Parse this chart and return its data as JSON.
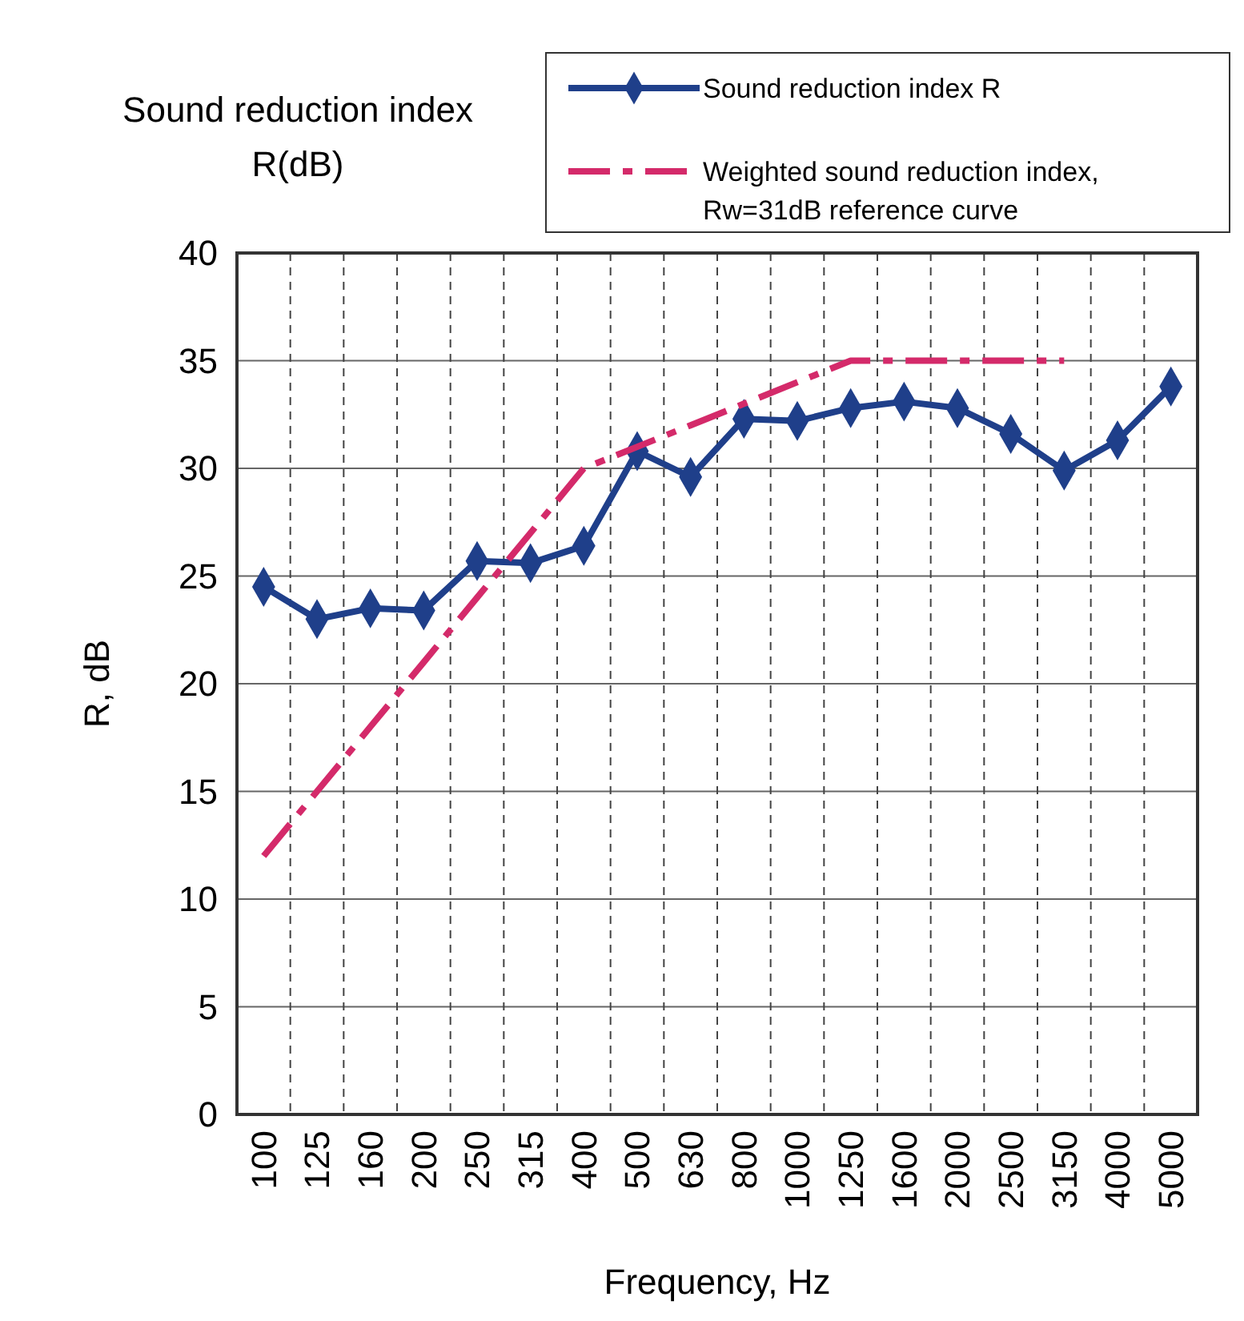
{
  "chart_data": {
    "type": "line",
    "title": "Sound reduction index R(dB)",
    "xlabel": "Frequency, Hz",
    "ylabel": "R, dB",
    "categories": [
      "100",
      "125",
      "160",
      "200",
      "250",
      "315",
      "400",
      "500",
      "630",
      "800",
      "1000",
      "1250",
      "1600",
      "2000",
      "2500",
      "3150",
      "4000",
      "5000"
    ],
    "series": [
      {
        "name": "Sound reduction index R",
        "color": "#1f3f8a",
        "marker": "diamond",
        "line_style": "solid",
        "values": [
          24.5,
          23,
          23.5,
          23.4,
          25.7,
          25.6,
          26.4,
          30.8,
          29.6,
          32.3,
          32.2,
          32.8,
          33.1,
          32.8,
          31.6,
          29.9,
          31.3,
          33.8
        ]
      },
      {
        "name": "Weighted sound reduction index, Rw=31dB reference curve",
        "color": "#d42a6a",
        "marker": "none",
        "line_style": "dashdot",
        "values": [
          12,
          15,
          18,
          21,
          24,
          27,
          30,
          31,
          32,
          33,
          34,
          35,
          35,
          35,
          35,
          35,
          null,
          null
        ]
      }
    ],
    "ylim": [
      0,
      40
    ],
    "yticks": [
      0,
      5,
      10,
      15,
      20,
      25,
      30,
      35,
      40
    ],
    "grid": true,
    "legend": "top right"
  }
}
